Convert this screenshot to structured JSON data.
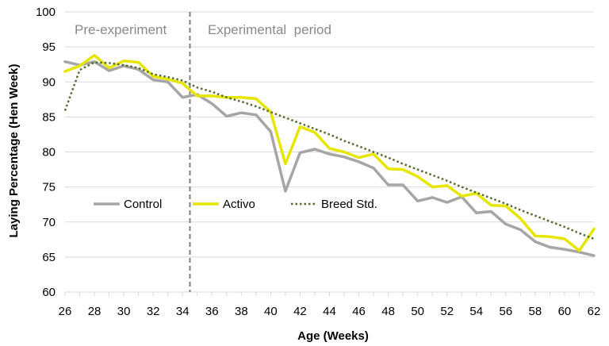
{
  "chart_data": {
    "type": "line",
    "xlabel": "Age (Weeks)",
    "ylabel": "Laying Percentage (Hen Week)",
    "xlim": [
      26,
      62
    ],
    "ylim": [
      60,
      100
    ],
    "x_ticks": [
      26,
      28,
      30,
      32,
      34,
      36,
      38,
      40,
      42,
      44,
      46,
      48,
      50,
      52,
      54,
      56,
      58,
      60,
      62
    ],
    "y_ticks": [
      60,
      65,
      70,
      75,
      80,
      85,
      90,
      95,
      100
    ],
    "grid": "horizontal",
    "legend_position": "lower-left",
    "divider_x": 34.5,
    "regions": [
      {
        "label": "Pre-experiment"
      },
      {
        "label": "Experimental  period"
      }
    ],
    "x": [
      26,
      27,
      28,
      29,
      30,
      31,
      32,
      33,
      34,
      35,
      36,
      37,
      38,
      39,
      40,
      41,
      42,
      43,
      44,
      45,
      46,
      47,
      48,
      49,
      50,
      51,
      52,
      53,
      54,
      55,
      56,
      57,
      58,
      59,
      60,
      61,
      62
    ],
    "series": [
      {
        "name": "Control",
        "color": "#a6a6a6",
        "style": "solid",
        "values": [
          92.9,
          92.4,
          92.9,
          91.6,
          92.3,
          91.8,
          90.3,
          90.0,
          87.8,
          88.2,
          86.9,
          85.1,
          85.6,
          85.3,
          82.9,
          74.4,
          79.9,
          80.4,
          79.7,
          79.3,
          78.6,
          77.7,
          75.3,
          75.3,
          73.0,
          73.5,
          72.8,
          73.6,
          71.3,
          71.5,
          69.7,
          68.9,
          67.2,
          66.4,
          66.1,
          65.7,
          65.2
        ]
      },
      {
        "name": "Activo",
        "color": "#e6e600",
        "style": "solid",
        "values": [
          91.5,
          92.3,
          93.8,
          92.0,
          93.0,
          92.8,
          90.8,
          90.4,
          89.8,
          88.0,
          88.0,
          87.8,
          87.8,
          87.6,
          85.7,
          78.3,
          83.6,
          82.8,
          80.5,
          80.0,
          79.2,
          79.7,
          77.6,
          77.5,
          76.5,
          75.0,
          75.2,
          73.7,
          74.1,
          72.4,
          72.3,
          70.5,
          68.0,
          67.9,
          67.6,
          65.9,
          69.0
        ]
      },
      {
        "name": "Breed Std.",
        "color": "#556b2f",
        "style": "dotted",
        "values": [
          85.9,
          91.7,
          92.8,
          92.7,
          92.4,
          92.0,
          91.1,
          90.7,
          90.2,
          89.2,
          88.6,
          87.8,
          87.2,
          86.5,
          85.7,
          84.9,
          84.1,
          83.3,
          82.5,
          81.6,
          80.8,
          80.0,
          79.2,
          78.3,
          77.5,
          76.7,
          75.9,
          75.0,
          74.2,
          73.4,
          72.6,
          71.7,
          70.9,
          70.1,
          69.3,
          68.4,
          67.6
        ]
      }
    ]
  }
}
